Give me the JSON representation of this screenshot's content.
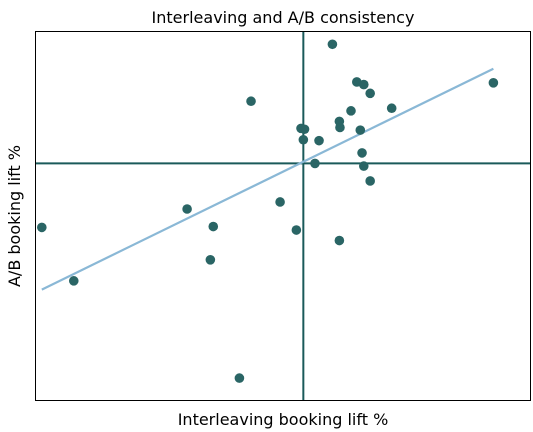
{
  "chart_data": {
    "type": "scatter",
    "title": "Interleaving and A/B consistency",
    "xlabel": "Interleaving booking lift %",
    "ylabel": "A/B booking lift %",
    "xlim": [
      -4.6,
      3.9
    ],
    "ylim": [
      -2.7,
      1.5
    ],
    "grid": false,
    "ticks": "hidden",
    "reference_lines": {
      "x": 0,
      "y": 0
    },
    "colors": {
      "points": "#2a6565",
      "reference_lines": "#1a5a5a",
      "fit_line": "#8ab8d6",
      "axes_frame": "#000000"
    },
    "points": [
      {
        "x": -4.5,
        "y": -0.73
      },
      {
        "x": -3.95,
        "y": -1.34
      },
      {
        "x": -2.0,
        "y": -0.52
      },
      {
        "x": -1.55,
        "y": -0.72
      },
      {
        "x": -1.6,
        "y": -1.1
      },
      {
        "x": -0.9,
        "y": 0.71
      },
      {
        "x": -1.1,
        "y": -2.45
      },
      {
        "x": -0.4,
        "y": -0.44
      },
      {
        "x": -0.12,
        "y": -0.76
      },
      {
        "x": -0.04,
        "y": 0.4
      },
      {
        "x": 0.02,
        "y": 0.39
      },
      {
        "x": 0.0,
        "y": 0.27
      },
      {
        "x": 0.2,
        "y": 0.0
      },
      {
        "x": 0.27,
        "y": 0.26
      },
      {
        "x": 0.5,
        "y": 1.36
      },
      {
        "x": 0.62,
        "y": 0.48
      },
      {
        "x": 0.63,
        "y": 0.41
      },
      {
        "x": 0.82,
        "y": 0.6
      },
      {
        "x": 0.92,
        "y": 0.93
      },
      {
        "x": 0.98,
        "y": 0.38
      },
      {
        "x": 1.01,
        "y": 0.12
      },
      {
        "x": 1.04,
        "y": -0.03
      },
      {
        "x": 1.04,
        "y": 0.9
      },
      {
        "x": 1.15,
        "y": 0.8
      },
      {
        "x": 1.15,
        "y": -0.2
      },
      {
        "x": 1.52,
        "y": 0.63
      },
      {
        "x": 3.27,
        "y": 0.92
      },
      {
        "x": 0.62,
        "y": -0.88
      }
    ],
    "fit_line": {
      "x": [
        -4.5,
        3.27
      ],
      "y": [
        -1.44,
        1.08
      ]
    }
  }
}
